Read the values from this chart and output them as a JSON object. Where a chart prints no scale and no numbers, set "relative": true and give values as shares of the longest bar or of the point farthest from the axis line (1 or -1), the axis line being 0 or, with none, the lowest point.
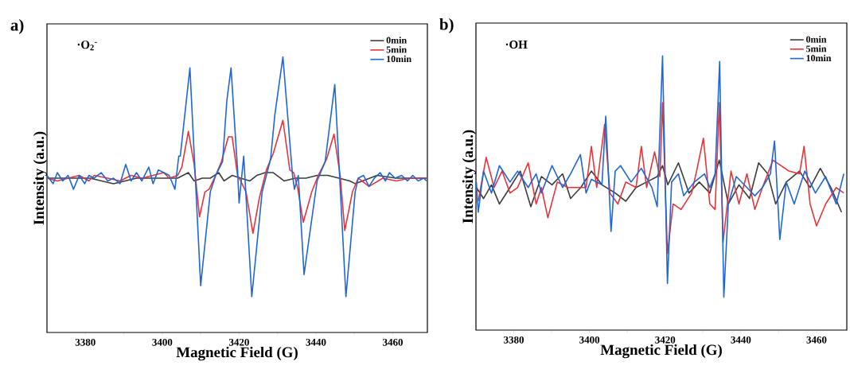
{
  "chart_data": [
    {
      "type": "line",
      "relative": true,
      "title": "a)",
      "xlabel": "Magnetic Field (G)",
      "ylabel": "Intensity (a.u.)",
      "annotations": [
        "·O$_{2}$$^{-}$"
      ],
      "xlim": [
        3370,
        3469
      ],
      "xticks": [
        3380,
        {
          "value": 3390,
          "label": null
        },
        3400,
        {
          "value": 3410,
          "label": null
        },
        3420,
        {
          "value": 3430,
          "label": null
        },
        3440,
        {
          "value": 3450,
          "label": null
        },
        3460
      ],
      "legend": "top right",
      "line_style": "solid",
      "series": [
        {
          "name": "0min",
          "color": "#3c3c3c",
          "x": [
            3370.0,
            3375.5,
            3381.2,
            3387.3,
            3393.3,
            3400.4,
            3404.0,
            3406.8,
            3408.3,
            3410.4,
            3412.5,
            3414.7,
            3416.1,
            3418.2,
            3420.4,
            3422.8,
            3424.6,
            3426.8,
            3428.9,
            3431.7,
            3434.6,
            3437.4,
            3440.3,
            3443.1,
            3446.0,
            3448.8,
            3450.2,
            3455.9,
            3460.9,
            3468.8
          ],
          "values": [
            0.56,
            0.56,
            0.56,
            0.54,
            0.56,
            0.56,
            0.56,
            0.58,
            0.55,
            0.56,
            0.56,
            0.58,
            0.55,
            0.57,
            0.56,
            0.55,
            0.57,
            0.58,
            0.58,
            0.55,
            0.56,
            0.56,
            0.57,
            0.57,
            0.56,
            0.55,
            0.54,
            0.57,
            0.56,
            0.56
          ]
        },
        {
          "name": "5min",
          "color": "#e8333a",
          "x": [
            3370.0,
            3372.7,
            3375.5,
            3378.4,
            3380.9,
            3382.3,
            3385.8,
            3389.0,
            3391.9,
            3394.7,
            3397.6,
            3400.4,
            3401.8,
            3404.0,
            3405.1,
            3406.8,
            3408.3,
            3409.7,
            3411.1,
            3412.2,
            3413.9,
            3415.4,
            3417.2,
            3418.2,
            3419.6,
            3420.4,
            3421.8,
            3423.6,
            3425.3,
            3427.1,
            3428.9,
            3431.4,
            3433.2,
            3434.2,
            3435.3,
            3436.7,
            3438.9,
            3440.6,
            3442.8,
            3444.7,
            3446.3,
            3447.5,
            3449.5,
            3451.0,
            3453.8,
            3457.4,
            3460.9,
            3464.5,
            3468.8
          ],
          "values": [
            0.56,
            0.55,
            0.56,
            0.57,
            0.55,
            0.57,
            0.56,
            0.55,
            0.57,
            0.56,
            0.57,
            0.58,
            0.56,
            0.57,
            0.6,
            0.73,
            0.61,
            0.42,
            0.51,
            0.52,
            0.57,
            0.62,
            0.71,
            0.71,
            0.57,
            0.55,
            0.51,
            0.36,
            0.49,
            0.59,
            0.65,
            0.77,
            0.59,
            0.58,
            0.52,
            0.4,
            0.51,
            0.57,
            0.63,
            0.72,
            0.57,
            0.37,
            0.51,
            0.56,
            0.53,
            0.56,
            0.55,
            0.56,
            0.56
          ]
        },
        {
          "name": "10min",
          "color": "#1f66d6",
          "x": [
            3370.0,
            3371.6,
            3372.7,
            3374.1,
            3375.5,
            3376.9,
            3378.4,
            3379.8,
            3380.9,
            3382.3,
            3384.1,
            3385.8,
            3387.3,
            3389.0,
            3390.5,
            3391.9,
            3393.3,
            3394.7,
            3396.5,
            3397.6,
            3399.0,
            3400.4,
            3401.8,
            3403.3,
            3404.3,
            3404.7,
            3407.2,
            3410.0,
            3412.5,
            3413.9,
            3415.7,
            3416.8,
            3417.9,
            3419.6,
            3420.0,
            3421.2,
            3423.3,
            3426.0,
            3428.2,
            3429.3,
            3431.4,
            3433.9,
            3434.4,
            3435.4,
            3436.9,
            3438.9,
            3440.3,
            3442.4,
            3444.9,
            3447.8,
            3450.2,
            3451.0,
            3452.4,
            3453.8,
            3455.2,
            3456.7,
            3458.1,
            3459.1,
            3460.6,
            3462.3,
            3463.8,
            3465.2,
            3466.6,
            3468.0,
            3468.8
          ],
          "values": [
            0.57,
            0.54,
            0.58,
            0.55,
            0.57,
            0.52,
            0.57,
            0.54,
            0.57,
            0.56,
            0.58,
            0.55,
            0.56,
            0.54,
            0.61,
            0.55,
            0.58,
            0.55,
            0.6,
            0.54,
            0.59,
            0.58,
            0.57,
            0.52,
            0.64,
            0.64,
            0.96,
            0.17,
            0.51,
            0.57,
            0.62,
            0.84,
            0.96,
            0.59,
            0.47,
            0.64,
            0.13,
            0.51,
            0.63,
            0.79,
            1.0,
            0.57,
            0.52,
            0.57,
            0.21,
            0.41,
            0.55,
            0.62,
            0.9,
            0.13,
            0.51,
            0.56,
            0.57,
            0.53,
            0.56,
            0.58,
            0.55,
            0.58,
            0.56,
            0.57,
            0.55,
            0.57,
            0.55,
            0.56,
            0.55
          ]
        }
      ]
    },
    {
      "type": "line",
      "relative": true,
      "title": "b)",
      "xlabel": "Magnetic Field (G)",
      "ylabel": "Intensity (a.u.)",
      "annotations": [
        "·OH"
      ],
      "xlim": [
        3370,
        3468
      ],
      "xticks": [
        3380,
        {
          "value": 3390,
          "label": null
        },
        3400,
        {
          "value": 3410,
          "label": null
        },
        3420,
        {
          "value": 3430,
          "label": null
        },
        3440,
        {
          "value": 3450,
          "label": null
        },
        3460
      ],
      "legend": "top right",
      "line_style": "solid",
      "series": [
        {
          "name": "0min",
          "color": "#3c3c3c",
          "x": [
            3370.1,
            3372.0,
            3374.1,
            3376.2,
            3379.0,
            3381.7,
            3384.5,
            3387.3,
            3390.1,
            3392.9,
            3395.0,
            3397.7,
            3400.5,
            3403.3,
            3406.8,
            3409.6,
            3412.3,
            3415.1,
            3417.9,
            3419.3,
            3420.7,
            3423.5,
            3426.3,
            3429.0,
            3431.8,
            3434.3,
            3436.7,
            3439.5,
            3442.3,
            3444.7,
            3447.1,
            3449.2,
            3452.0,
            3455.5,
            3458.3,
            3461.0,
            3463.8,
            3466.6
          ],
          "values": [
            0.52,
            0.48,
            0.53,
            0.46,
            0.52,
            0.58,
            0.45,
            0.56,
            0.53,
            0.57,
            0.48,
            0.52,
            0.58,
            0.53,
            0.5,
            0.47,
            0.52,
            0.54,
            0.56,
            0.6,
            0.53,
            0.61,
            0.5,
            0.54,
            0.5,
            0.62,
            0.46,
            0.53,
            0.48,
            0.61,
            0.57,
            0.46,
            0.54,
            0.58,
            0.52,
            0.59,
            0.52,
            0.43
          ]
        },
        {
          "name": "5min",
          "color": "#e8333a",
          "x": [
            3370.6,
            3372.7,
            3374.8,
            3376.9,
            3379.0,
            3381.0,
            3383.8,
            3385.9,
            3387.3,
            3389.0,
            3391.5,
            3394.3,
            3397.0,
            3399.1,
            3400.5,
            3401.9,
            3404.0,
            3405.4,
            3407.5,
            3409.6,
            3412.3,
            3413.7,
            3415.1,
            3417.2,
            3418.6,
            3419.3,
            3420.6,
            3422.1,
            3424.2,
            3427.0,
            3428.3,
            3430.1,
            3431.8,
            3433.2,
            3434.3,
            3435.3,
            3437.4,
            3439.5,
            3441.6,
            3443.7,
            3445.7,
            3448.5,
            3450.3,
            3452.7,
            3455.5,
            3456.7,
            3458.3,
            3460.0,
            3462.4,
            3465.2,
            3467.2
          ],
          "values": [
            0.47,
            0.63,
            0.52,
            0.58,
            0.5,
            0.52,
            0.61,
            0.46,
            0.52,
            0.41,
            0.54,
            0.52,
            0.52,
            0.52,
            0.67,
            0.52,
            0.75,
            0.5,
            0.46,
            0.54,
            0.52,
            0.67,
            0.52,
            0.65,
            0.56,
            0.83,
            0.28,
            0.46,
            0.44,
            0.5,
            0.58,
            0.7,
            0.46,
            0.44,
            0.83,
            0.32,
            0.58,
            0.46,
            0.57,
            0.44,
            0.52,
            0.62,
            null,
            0.58,
            0.57,
            0.67,
            0.46,
            0.38,
            0.46,
            0.52,
            0.5
          ]
        },
        {
          "name": "10min",
          "color": "#1f66d6",
          "x": [
            3370.1,
            3370.6,
            3372.0,
            3374.1,
            3376.2,
            3379.0,
            3381.0,
            3383.8,
            3385.9,
            3387.3,
            3390.1,
            3392.9,
            3395.0,
            3397.6,
            3399.1,
            3400.5,
            3403.3,
            3404.3,
            3405.7,
            3406.8,
            3408.2,
            3411.0,
            3413.7,
            3416.5,
            3417.9,
            3419.3,
            3420.6,
            3421.7,
            3423.5,
            3424.9,
            3427.7,
            3430.4,
            3431.8,
            3433.2,
            3434.4,
            3435.5,
            3436.7,
            3438.8,
            3441.6,
            3443.7,
            3445.7,
            3447.8,
            3448.9,
            3450.3,
            3452.0,
            3454.1,
            3456.9,
            3459.7,
            3462.4,
            3465.2,
            3467.2
          ],
          "values": [
            0.54,
            0.43,
            0.58,
            0.5,
            0.6,
            0.54,
            0.58,
            0.52,
            0.57,
            0.5,
            0.6,
            0.52,
            0.57,
            0.64,
            0.5,
            0.55,
            0.53,
            0.78,
            0.36,
            0.58,
            0.6,
            0.54,
            0.59,
            0.52,
            0.45,
            1.0,
            0.17,
            0.54,
            0.57,
            0.49,
            0.54,
            0.57,
            0.52,
            0.57,
            0.98,
            0.12,
            0.46,
            0.56,
            0.52,
            0.49,
            0.52,
            0.57,
            0.69,
            0.33,
            0.54,
            0.46,
            0.58,
            0.5,
            0.56,
            0.46,
            0.57
          ]
        }
      ]
    }
  ]
}
